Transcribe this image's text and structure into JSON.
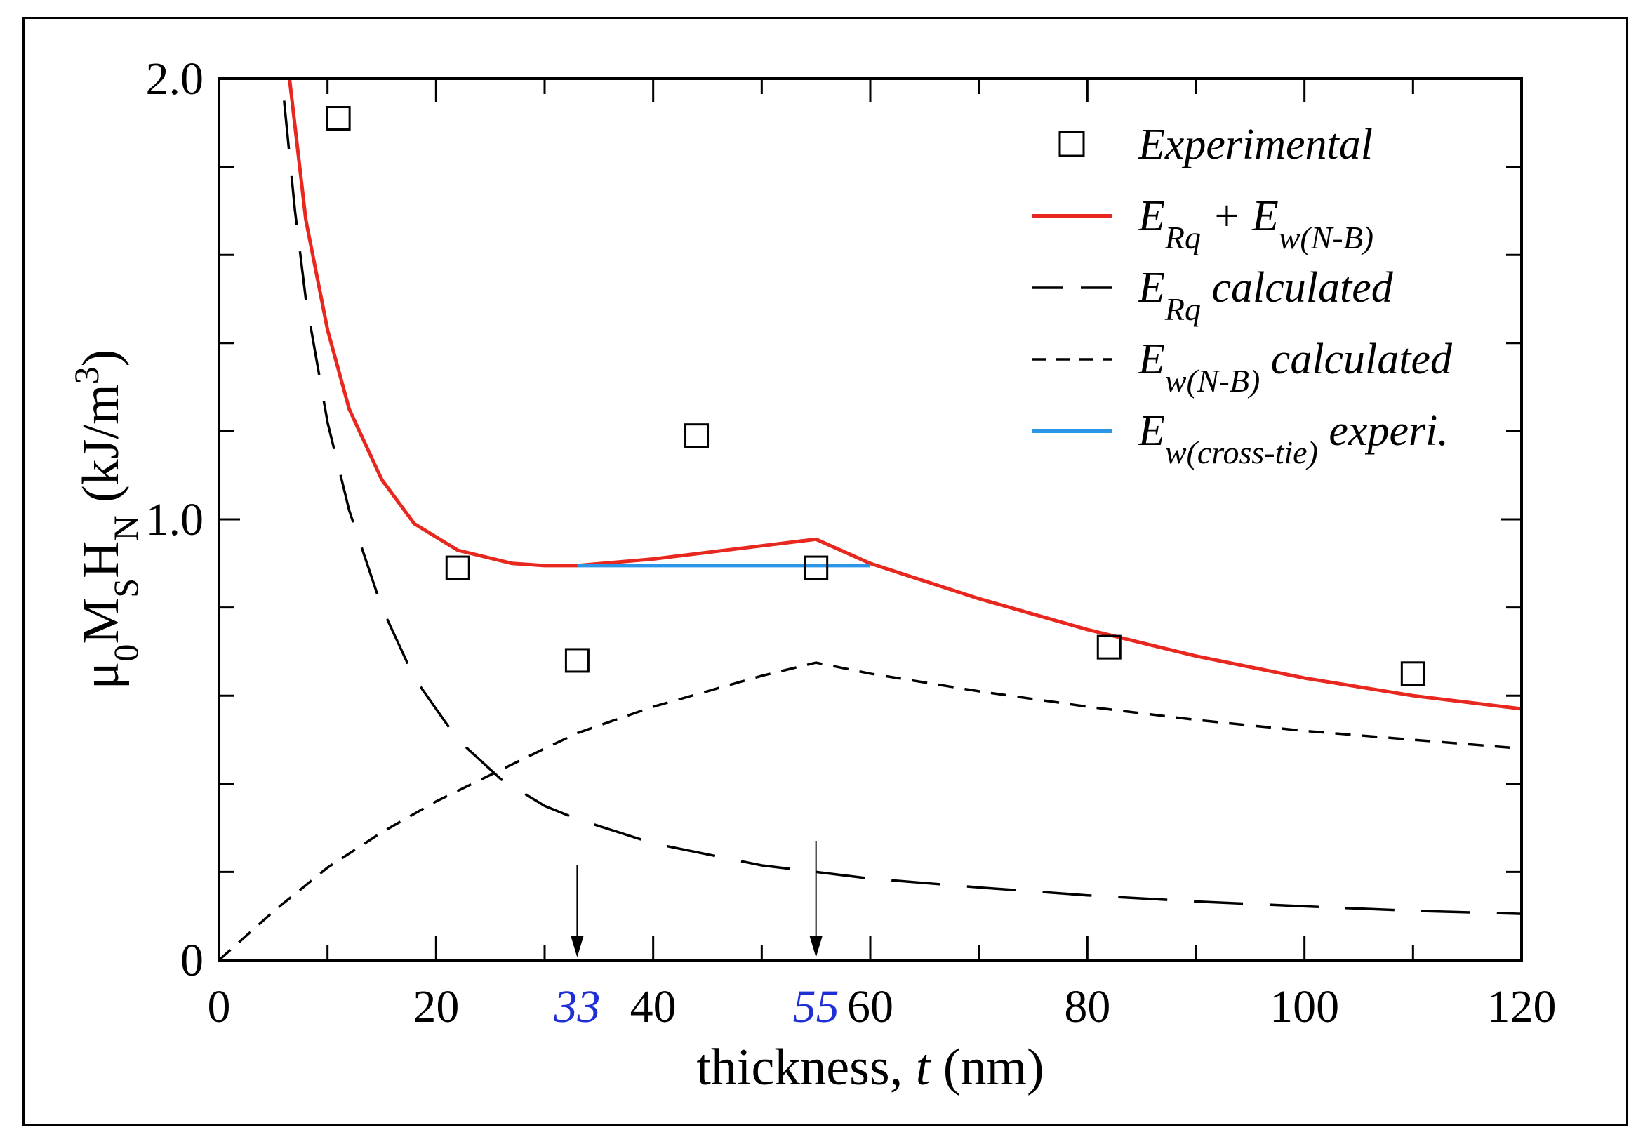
{
  "chart_data": {
    "type": "line",
    "xlabel": "thickness,",
    "xlabel_var": "t",
    "xlabel_unit": "(nm)",
    "ylabel": "μ0MSHN (kJ/m3)",
    "xlim": [
      0,
      120
    ],
    "ylim": [
      0,
      2.0
    ],
    "x_ticks": [
      "0",
      "20",
      "40",
      "60",
      "80",
      "100",
      "120"
    ],
    "x_tick_values": [
      0,
      20,
      40,
      60,
      80,
      100,
      120
    ],
    "y_ticks": [
      "0",
      "1.0",
      "2.0"
    ],
    "y_tick_values": [
      0,
      1.0,
      2.0
    ],
    "special_x_ticks": [
      {
        "label": "33",
        "value": 33,
        "color": "#1f2fd6"
      },
      {
        "label": "55",
        "value": 55,
        "color": "#1f2fd6"
      }
    ],
    "legend_position": "top-right",
    "legend": [
      {
        "marker": "square",
        "label": "Experimental"
      },
      {
        "marker": "line",
        "color": "#e8281e",
        "label": "E",
        "sub": "Rq",
        "mid": " + E",
        "sub2": "w(N-B)",
        "tail": ""
      },
      {
        "marker": "long-dash",
        "color": "#000000",
        "label": "E",
        "sub": "Rq",
        "tail": " calculated"
      },
      {
        "marker": "short-dash",
        "color": "#000000",
        "label": "E",
        "sub": "w(N-B)",
        "tail": " calculated"
      },
      {
        "marker": "line",
        "color": "#2b95e8",
        "label": "E",
        "sub": "w(cross-tie)",
        "tail": " experi."
      }
    ],
    "series": [
      {
        "name": "Experimental",
        "style": "markers",
        "x": [
          11,
          22,
          33,
          44,
          55,
          82,
          110
        ],
        "y": [
          1.91,
          0.89,
          0.68,
          1.19,
          0.89,
          0.71,
          0.65
        ]
      },
      {
        "name": "ERq + Ew(N-B)",
        "style": "solid",
        "color": "#e8281e",
        "x": [
          6.5,
          8,
          10,
          12,
          15,
          18,
          22,
          27,
          30,
          33,
          40,
          50,
          55,
          60,
          70,
          80,
          90,
          100,
          110,
          120
        ],
        "y": [
          2.0,
          1.68,
          1.43,
          1.25,
          1.09,
          0.99,
          0.93,
          0.9,
          0.895,
          0.895,
          0.91,
          0.94,
          0.955,
          0.9,
          0.82,
          0.75,
          0.69,
          0.64,
          0.6,
          0.57
        ]
      },
      {
        "name": "ERq calculated",
        "style": "long-dash",
        "color": "#000000",
        "x": [
          6,
          7,
          8,
          10,
          12,
          15,
          18,
          22,
          26,
          30,
          33,
          40,
          50,
          55,
          60,
          70,
          80,
          90,
          100,
          110,
          120
        ],
        "y": [
          1.95,
          1.7,
          1.5,
          1.22,
          1.02,
          0.8,
          0.64,
          0.5,
          0.41,
          0.35,
          0.32,
          0.265,
          0.215,
          0.2,
          0.185,
          0.165,
          0.147,
          0.133,
          0.122,
          0.112,
          0.105
        ]
      },
      {
        "name": "Ew(N-B) calculated",
        "style": "short-dash",
        "color": "#000000",
        "x": [
          0,
          5,
          10,
          15,
          20,
          25,
          30,
          33,
          40,
          45,
          50,
          55,
          60,
          70,
          80,
          90,
          100,
          110,
          120
        ],
        "y": [
          0,
          0.11,
          0.21,
          0.29,
          0.36,
          0.42,
          0.48,
          0.515,
          0.575,
          0.61,
          0.645,
          0.675,
          0.65,
          0.61,
          0.575,
          0.545,
          0.52,
          0.5,
          0.48
        ]
      },
      {
        "name": "Ew(cross-tie) experi.",
        "style": "solid",
        "color": "#2b95e8",
        "x": [
          33,
          60
        ],
        "y": [
          0.895,
          0.895
        ]
      }
    ]
  }
}
